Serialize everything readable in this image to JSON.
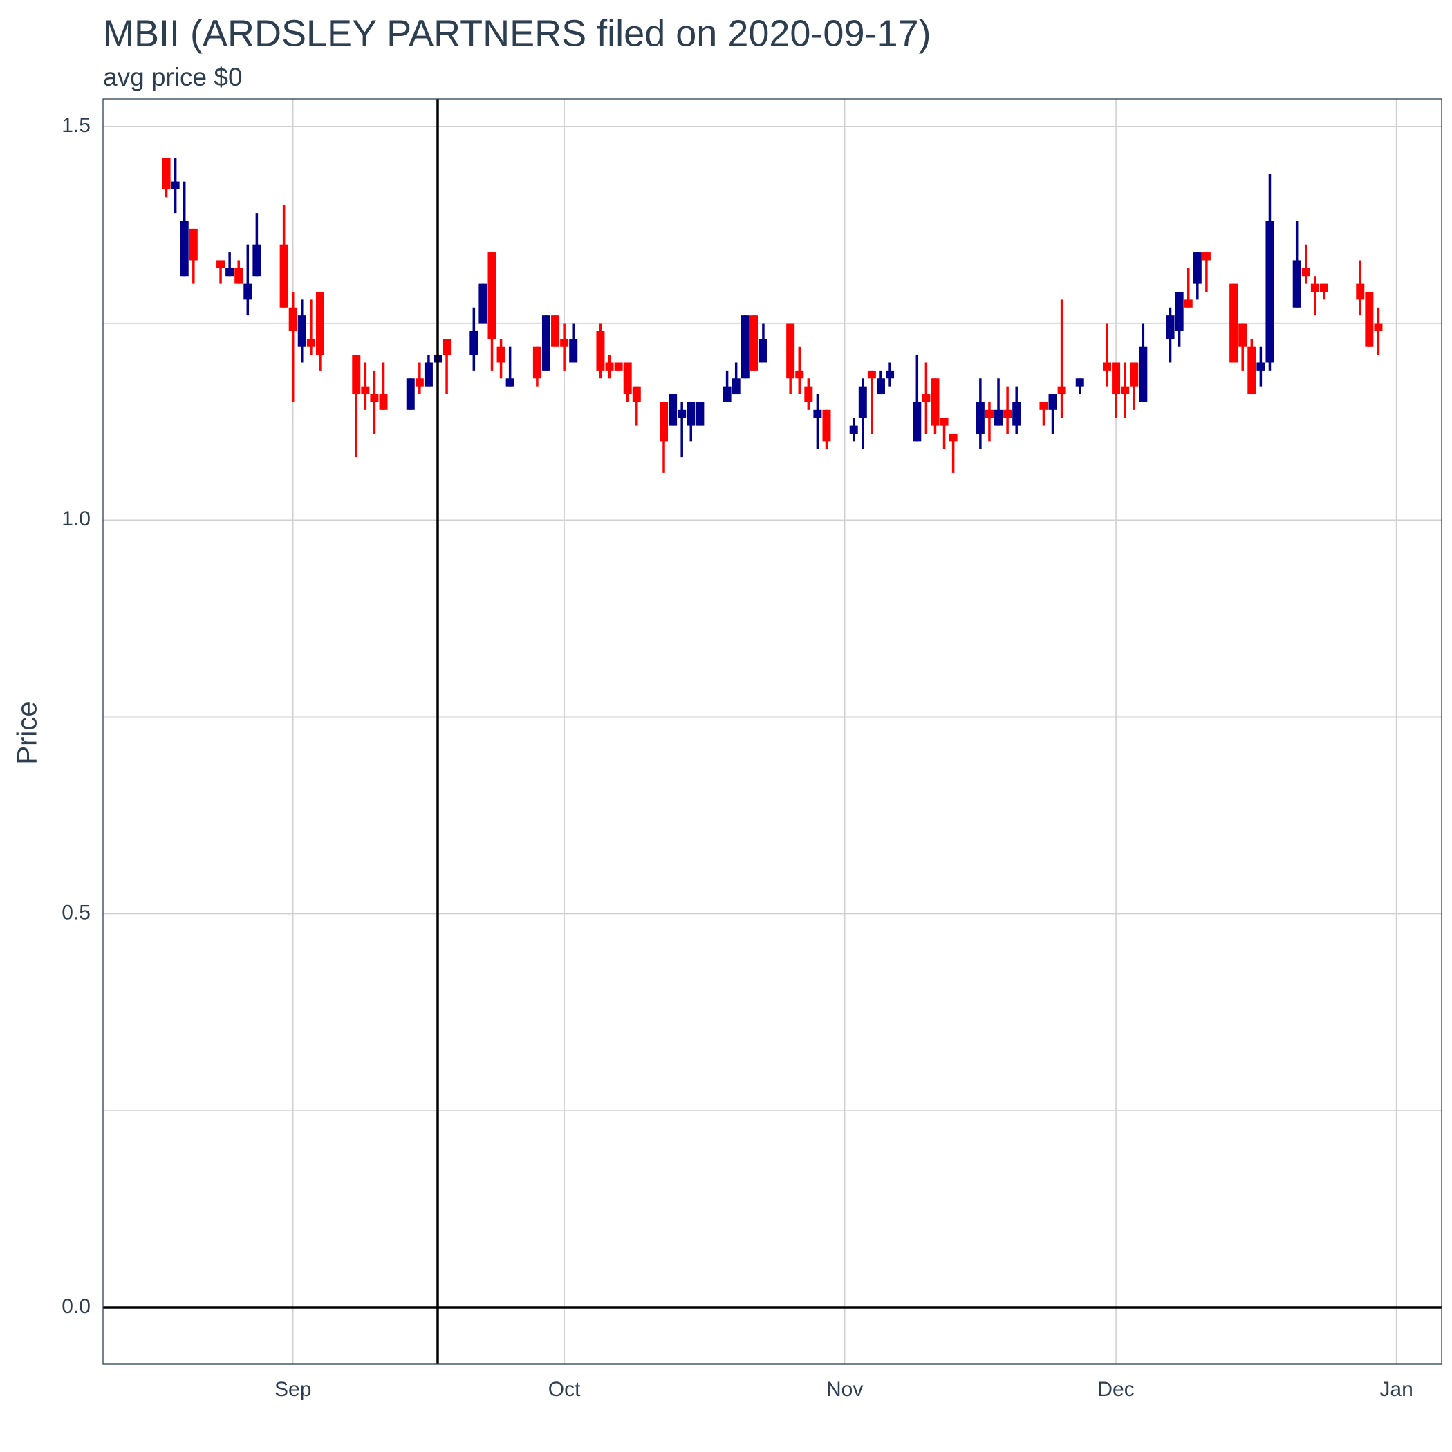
{
  "chart_data": {
    "type": "candlestick",
    "title": "MBII (ARDSLEY PARTNERS filed on 2020-09-17)",
    "subtitle": "avg price $0",
    "y_label": "Price",
    "colors": {
      "up": "#00008b",
      "down": "#ff0000"
    },
    "x": [
      "2020-08-18",
      "2020-08-19",
      "2020-08-20",
      "2020-08-21",
      "2020-08-24",
      "2020-08-25",
      "2020-08-26",
      "2020-08-27",
      "2020-08-28",
      "2020-08-31",
      "2020-09-01",
      "2020-09-02",
      "2020-09-03",
      "2020-09-04",
      "2020-09-08",
      "2020-09-09",
      "2020-09-10",
      "2020-09-11",
      "2020-09-14",
      "2020-09-15",
      "2020-09-16",
      "2020-09-17",
      "2020-09-18",
      "2020-09-21",
      "2020-09-22",
      "2020-09-23",
      "2020-09-24",
      "2020-09-25",
      "2020-09-28",
      "2020-09-29",
      "2020-09-30",
      "2020-10-01",
      "2020-10-02",
      "2020-10-05",
      "2020-10-06",
      "2020-10-07",
      "2020-10-08",
      "2020-10-09",
      "2020-10-12",
      "2020-10-13",
      "2020-10-14",
      "2020-10-15",
      "2020-10-16",
      "2020-10-19",
      "2020-10-20",
      "2020-10-21",
      "2020-10-22",
      "2020-10-23",
      "2020-10-26",
      "2020-10-27",
      "2020-10-28",
      "2020-10-29",
      "2020-10-30",
      "2020-11-02",
      "2020-11-03",
      "2020-11-04",
      "2020-11-05",
      "2020-11-06",
      "2020-11-09",
      "2020-11-10",
      "2020-11-11",
      "2020-11-12",
      "2020-11-13",
      "2020-11-16",
      "2020-11-17",
      "2020-11-18",
      "2020-11-19",
      "2020-11-20",
      "2020-11-23",
      "2020-11-24",
      "2020-11-25",
      "2020-11-27",
      "2020-11-30",
      "2020-12-01",
      "2020-12-02",
      "2020-12-03",
      "2020-12-04",
      "2020-12-07",
      "2020-12-08",
      "2020-12-09",
      "2020-12-10",
      "2020-12-11",
      "2020-12-14",
      "2020-12-15",
      "2020-12-16",
      "2020-12-17",
      "2020-12-18",
      "2020-12-21",
      "2020-12-22",
      "2020-12-23",
      "2020-12-24",
      "2020-12-28",
      "2020-12-29",
      "2020-12-30"
    ],
    "open": [
      1.46,
      1.42,
      1.31,
      1.37,
      1.33,
      1.31,
      1.32,
      1.28,
      1.31,
      1.35,
      1.27,
      1.22,
      1.23,
      1.29,
      1.21,
      1.17,
      1.16,
      1.16,
      1.14,
      1.18,
      1.17,
      1.2,
      1.23,
      1.21,
      1.25,
      1.34,
      1.22,
      1.17,
      1.22,
      1.19,
      1.26,
      1.23,
      1.2,
      1.24,
      1.2,
      1.2,
      1.2,
      1.17,
      1.15,
      1.12,
      1.13,
      1.12,
      1.12,
      1.15,
      1.16,
      1.18,
      1.26,
      1.2,
      1.25,
      1.19,
      1.17,
      1.13,
      1.14,
      1.11,
      1.13,
      1.19,
      1.16,
      1.18,
      1.1,
      1.16,
      1.18,
      1.13,
      1.11,
      1.11,
      1.14,
      1.12,
      1.14,
      1.12,
      1.15,
      1.14,
      1.17,
      1.17,
      1.2,
      1.2,
      1.17,
      1.2,
      1.15,
      1.23,
      1.24,
      1.28,
      1.3,
      1.34,
      1.3,
      1.25,
      1.22,
      1.19,
      1.2,
      1.27,
      1.32,
      1.3,
      1.3,
      1.3,
      1.29,
      1.25
    ],
    "high": [
      1.46,
      1.46,
      1.43,
      1.37,
      1.33,
      1.34,
      1.33,
      1.35,
      1.39,
      1.4,
      1.29,
      1.28,
      1.28,
      1.29,
      1.21,
      1.2,
      1.19,
      1.2,
      1.18,
      1.2,
      1.21,
      1.21,
      1.23,
      1.27,
      1.3,
      1.34,
      1.23,
      1.22,
      1.22,
      1.26,
      1.26,
      1.25,
      1.25,
      1.25,
      1.21,
      1.2,
      1.2,
      1.17,
      1.15,
      1.16,
      1.15,
      1.15,
      1.15,
      1.19,
      1.2,
      1.26,
      1.26,
      1.25,
      1.25,
      1.22,
      1.18,
      1.16,
      1.14,
      1.13,
      1.18,
      1.19,
      1.19,
      1.2,
      1.21,
      1.2,
      1.18,
      1.13,
      1.11,
      1.18,
      1.15,
      1.18,
      1.17,
      1.17,
      1.15,
      1.16,
      1.28,
      1.18,
      1.25,
      1.2,
      1.2,
      1.2,
      1.25,
      1.27,
      1.29,
      1.32,
      1.34,
      1.34,
      1.3,
      1.25,
      1.23,
      1.22,
      1.44,
      1.38,
      1.35,
      1.31,
      1.3,
      1.33,
      1.29,
      1.27
    ],
    "low": [
      1.41,
      1.39,
      1.31,
      1.3,
      1.3,
      1.31,
      1.3,
      1.26,
      1.31,
      1.27,
      1.15,
      1.2,
      1.21,
      1.19,
      1.08,
      1.14,
      1.11,
      1.14,
      1.14,
      1.16,
      1.17,
      1.2,
      1.16,
      1.19,
      1.25,
      1.19,
      1.18,
      1.17,
      1.17,
      1.19,
      1.22,
      1.19,
      1.2,
      1.18,
      1.18,
      1.19,
      1.15,
      1.12,
      1.06,
      1.12,
      1.08,
      1.1,
      1.12,
      1.15,
      1.16,
      1.18,
      1.19,
      1.2,
      1.16,
      1.16,
      1.14,
      1.09,
      1.09,
      1.1,
      1.09,
      1.11,
      1.16,
      1.17,
      1.1,
      1.11,
      1.11,
      1.09,
      1.06,
      1.09,
      1.1,
      1.12,
      1.11,
      1.11,
      1.12,
      1.11,
      1.13,
      1.16,
      1.17,
      1.13,
      1.13,
      1.14,
      1.15,
      1.2,
      1.22,
      1.27,
      1.28,
      1.29,
      1.2,
      1.19,
      1.16,
      1.17,
      1.19,
      1.27,
      1.3,
      1.26,
      1.28,
      1.26,
      1.22,
      1.21
    ],
    "close": [
      1.42,
      1.43,
      1.38,
      1.33,
      1.32,
      1.32,
      1.3,
      1.3,
      1.35,
      1.27,
      1.24,
      1.26,
      1.22,
      1.21,
      1.16,
      1.16,
      1.15,
      1.14,
      1.18,
      1.17,
      1.2,
      1.21,
      1.21,
      1.24,
      1.3,
      1.23,
      1.2,
      1.18,
      1.18,
      1.26,
      1.22,
      1.22,
      1.23,
      1.19,
      1.19,
      1.19,
      1.16,
      1.15,
      1.1,
      1.16,
      1.14,
      1.15,
      1.15,
      1.17,
      1.18,
      1.26,
      1.19,
      1.23,
      1.18,
      1.18,
      1.15,
      1.14,
      1.1,
      1.12,
      1.17,
      1.18,
      1.18,
      1.19,
      1.15,
      1.15,
      1.12,
      1.12,
      1.1,
      1.15,
      1.13,
      1.14,
      1.13,
      1.15,
      1.14,
      1.16,
      1.16,
      1.18,
      1.19,
      1.16,
      1.16,
      1.17,
      1.22,
      1.26,
      1.29,
      1.27,
      1.34,
      1.33,
      1.2,
      1.22,
      1.16,
      1.2,
      1.38,
      1.33,
      1.31,
      1.29,
      1.29,
      1.28,
      1.22,
      1.24
    ],
    "xlim": [
      "2020-08-11",
      "2021-01-06"
    ],
    "xticks": [
      {
        "value": "2020-09-01",
        "label": "Sep"
      },
      {
        "value": "2020-10-01",
        "label": "Oct"
      },
      {
        "value": "2020-11-01",
        "label": "Nov"
      },
      {
        "value": "2020-12-01",
        "label": "Dec"
      },
      {
        "value": "2021-01-01",
        "label": "Jan"
      }
    ],
    "ylim": [
      -0.072,
      1.535
    ],
    "yticks": [
      {
        "value": 0,
        "label": "0.0"
      },
      0.5,
      {
        "value": 1,
        "label": "1.0"
      },
      1.5
    ],
    "y_minor_gridlines": [
      0.25,
      0.75,
      1.25
    ],
    "grid": true,
    "vline": "2020-09-17",
    "hline": 0
  }
}
